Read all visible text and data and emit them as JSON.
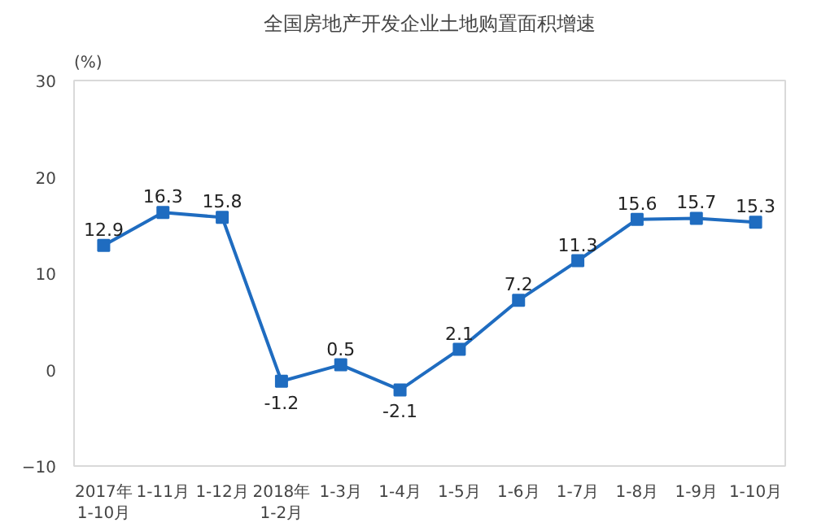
{
  "chart_data": {
    "type": "line",
    "title": "全国房地产开发企业土地购置面积增速",
    "ylabel": "(%)",
    "categories": [
      "2017年\n1-10月",
      "1-11月",
      "1-12月",
      "2018年\n1-2月",
      "1-3月",
      "1-4月",
      "1-5月",
      "1-6月",
      "1-7月",
      "1-8月",
      "1-9月",
      "1-10月"
    ],
    "series": [
      {
        "color": "#1f6cc0",
        "values": [
          12.9,
          16.3,
          15.8,
          -1.2,
          0.5,
          -2.1,
          2.1,
          7.2,
          11.3,
          15.6,
          15.7,
          15.3
        ]
      }
    ],
    "ylim": [
      -10,
      30
    ],
    "yticks": [
      -10,
      0,
      10,
      20,
      30
    ],
    "grid": false,
    "marker": "square",
    "line_style": "solid",
    "data_labels": true
  }
}
